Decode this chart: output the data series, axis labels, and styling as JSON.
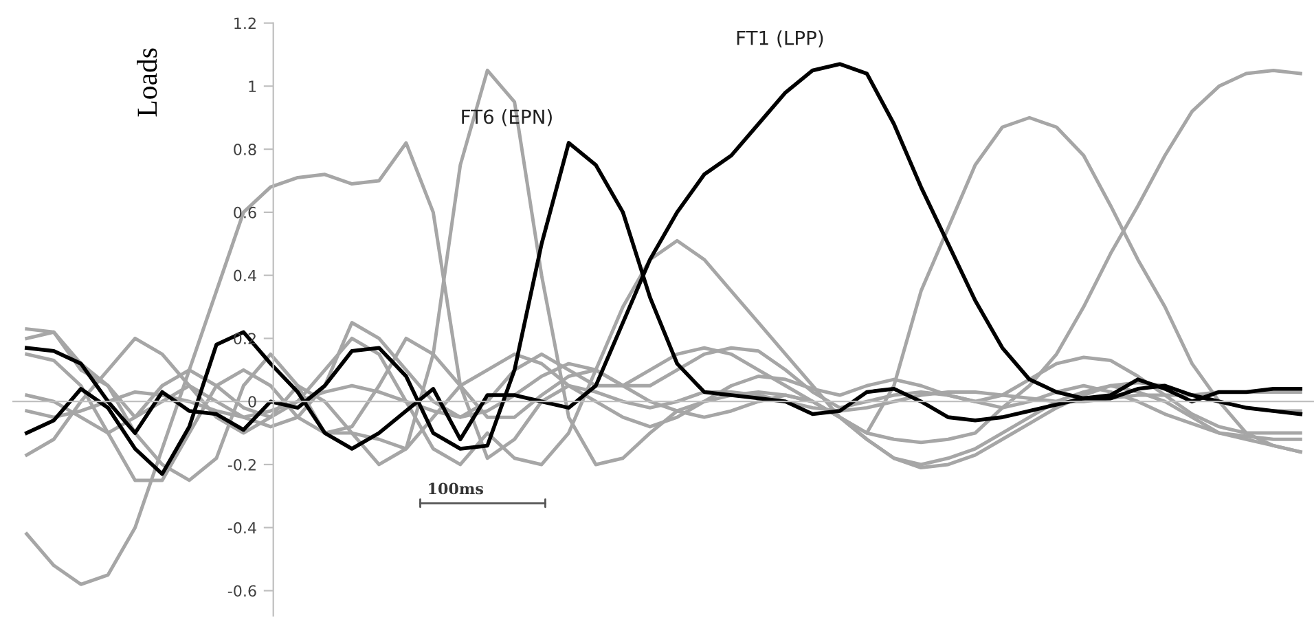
{
  "chart_data": {
    "type": "line",
    "ylabel": "Loads",
    "categories": [
      null,
      null,
      null,
      null,
      null,
      null,
      null,
      null,
      null,
      null,
      null,
      null,
      null,
      null,
      null,
      null,
      null,
      null,
      null,
      null,
      null,
      null,
      null,
      null,
      null,
      null,
      null,
      null,
      null,
      null,
      null,
      null,
      null,
      null,
      null,
      null,
      null,
      null,
      null,
      null,
      null,
      null,
      null,
      null,
      null,
      null,
      null,
      null
    ],
    "ylim": [
      -0.68,
      1.2
    ],
    "yticks": [
      -0.6,
      -0.4,
      -0.2,
      0,
      0.2,
      0.4,
      0.6,
      0.8,
      1,
      1.2
    ],
    "tick_labels": "y",
    "marker": "none",
    "line_style": "solid",
    "annotations": [
      "100ms"
    ],
    "series": [
      {
        "color": "#a6a6a6",
        "values": [
          -0.42,
          -0.52,
          -0.58,
          -0.55,
          -0.4,
          -0.15,
          0.1,
          0.35,
          0.6,
          0.68,
          0.71,
          0.72,
          0.69,
          0.7,
          0.82,
          0.6,
          0.05,
          -0.18,
          -0.12,
          0.0,
          0.05,
          0.03,
          0.0,
          -0.02,
          0.0,
          0.03,
          0.03,
          0.02,
          0.0,
          -0.02,
          -0.03,
          -0.02,
          0.0,
          0.02,
          0.03,
          0.03,
          0.02,
          0.01,
          0.0,
          0.0,
          0.01,
          0.02,
          0.02,
          0.02,
          0.03,
          0.03,
          0.03,
          0.03
        ]
      },
      {
        "color": "#a6a6a6",
        "values": [
          0.15,
          0.13,
          0.05,
          -0.1,
          -0.25,
          -0.25,
          -0.1,
          0.05,
          0.1,
          0.05,
          -0.05,
          -0.1,
          -0.1,
          -0.12,
          -0.15,
          0.15,
          0.75,
          1.05,
          0.95,
          0.4,
          -0.05,
          -0.2,
          -0.18,
          -0.1,
          -0.03,
          0.0,
          0.02,
          0.03,
          0.02,
          0.0,
          -0.05,
          -0.12,
          -0.18,
          -0.2,
          -0.18,
          -0.15,
          -0.1,
          -0.05,
          0.0,
          0.03,
          0.05,
          0.03,
          0.0,
          -0.05,
          -0.1,
          -0.12,
          -0.14,
          -0.16
        ]
      },
      {
        "color": "#a6a6a6",
        "values": [
          0.02,
          0.0,
          -0.05,
          -0.1,
          -0.05,
          0.05,
          0.1,
          0.05,
          -0.02,
          -0.05,
          0.0,
          0.1,
          0.2,
          0.15,
          0.0,
          -0.15,
          -0.2,
          -0.1,
          -0.18,
          -0.2,
          -0.1,
          0.1,
          0.3,
          0.45,
          0.51,
          0.45,
          0.35,
          0.25,
          0.15,
          0.05,
          -0.05,
          -0.12,
          -0.18,
          -0.21,
          -0.2,
          -0.17,
          -0.12,
          -0.07,
          -0.02,
          0.02,
          0.05,
          0.06,
          0.05,
          0.02,
          0.0,
          -0.02,
          -0.03,
          -0.03
        ]
      },
      {
        "color": "#a6a6a6",
        "values": [
          0.2,
          0.22,
          0.1,
          0.05,
          -0.05,
          0.0,
          0.05,
          0.0,
          -0.05,
          -0.08,
          -0.05,
          0.05,
          0.25,
          0.2,
          0.1,
          0.0,
          -0.05,
          0.0,
          0.1,
          0.15,
          0.1,
          0.05,
          0.05,
          0.1,
          0.15,
          0.17,
          0.15,
          0.1,
          0.05,
          0.0,
          -0.05,
          -0.1,
          0.05,
          0.35,
          0.55,
          0.75,
          0.87,
          0.9,
          0.87,
          0.78,
          0.62,
          0.45,
          0.3,
          0.12,
          0.0,
          -0.1,
          -0.14,
          -0.16
        ]
      },
      {
        "color": "#a6a6a6",
        "values": [
          -0.03,
          -0.05,
          -0.03,
          0.0,
          0.03,
          0.02,
          0.0,
          -0.03,
          -0.05,
          -0.03,
          0.0,
          0.03,
          0.05,
          0.03,
          0.0,
          -0.03,
          -0.05,
          -0.03,
          0.02,
          0.08,
          0.12,
          0.1,
          0.05,
          0.0,
          -0.03,
          -0.05,
          -0.03,
          0.0,
          0.02,
          0.0,
          -0.05,
          -0.1,
          -0.12,
          -0.13,
          -0.12,
          -0.1,
          -0.02,
          0.05,
          0.15,
          0.3,
          0.47,
          0.62,
          0.78,
          0.92,
          1.0,
          1.04,
          1.05,
          1.04
        ]
      },
      {
        "color": "#a6a6a6",
        "values": [
          0.23,
          0.22,
          0.12,
          0.05,
          -0.1,
          -0.2,
          -0.25,
          -0.18,
          0.05,
          0.15,
          0.05,
          -0.1,
          -0.08,
          0.05,
          0.2,
          0.15,
          0.05,
          -0.05,
          -0.05,
          0.02,
          0.08,
          0.1,
          0.05,
          0.05,
          0.1,
          0.15,
          0.17,
          0.16,
          0.1,
          0.03,
          -0.02,
          0.0,
          0.02,
          0.03,
          0.02,
          0.0,
          0.02,
          0.07,
          0.12,
          0.14,
          0.13,
          0.08,
          0.02,
          -0.04,
          -0.08,
          -0.1,
          -0.1,
          -0.1
        ]
      },
      {
        "color": "#a6a6a6",
        "values": [
          -0.17,
          -0.12,
          0.0,
          0.1,
          0.2,
          0.15,
          0.05,
          -0.05,
          -0.1,
          -0.05,
          0.05,
          0.0,
          -0.1,
          -0.2,
          -0.15,
          -0.05,
          0.05,
          0.1,
          0.15,
          0.12,
          0.05,
          0.0,
          -0.05,
          -0.08,
          -0.05,
          0.0,
          0.05,
          0.08,
          0.07,
          0.04,
          0.02,
          0.05,
          0.07,
          0.05,
          0.02,
          0.0,
          -0.02,
          0.0,
          0.03,
          0.05,
          0.03,
          0.0,
          -0.04,
          -0.07,
          -0.1,
          -0.11,
          -0.12,
          -0.12
        ]
      },
      {
        "name": "FT6 (EPN)",
        "color": "#000000",
        "values": [
          0.17,
          0.16,
          0.12,
          0.0,
          -0.1,
          0.03,
          -0.03,
          -0.04,
          -0.09,
          0.0,
          -0.02,
          0.05,
          0.16,
          0.17,
          0.08,
          -0.1,
          -0.15,
          -0.14,
          0.1,
          0.5,
          0.82,
          0.75,
          0.6,
          0.33,
          0.12,
          0.03,
          0.02,
          0.01,
          0.0,
          -0.04,
          -0.03,
          0.03,
          0.04,
          0.0,
          -0.05,
          -0.06,
          -0.05,
          -0.03,
          -0.01,
          0.01,
          0.01,
          0.04,
          0.05,
          0.02,
          0.0,
          -0.02,
          -0.03,
          -0.04
        ]
      },
      {
        "name": "FT1 (LPP)",
        "color": "#000000",
        "values": [
          -0.1,
          -0.06,
          0.04,
          -0.02,
          -0.15,
          -0.23,
          -0.08,
          0.18,
          0.22,
          0.12,
          0.03,
          -0.1,
          -0.15,
          -0.1,
          -0.03,
          0.04,
          -0.12,
          0.02,
          0.02,
          0.0,
          -0.02,
          0.05,
          0.25,
          0.45,
          0.6,
          0.72,
          0.78,
          0.88,
          0.98,
          1.05,
          1.07,
          1.04,
          0.88,
          0.68,
          0.5,
          0.32,
          0.17,
          0.07,
          0.03,
          0.01,
          0.02,
          0.07,
          0.04,
          0.0,
          0.03,
          0.03,
          0.04,
          0.04
        ]
      }
    ]
  }
}
